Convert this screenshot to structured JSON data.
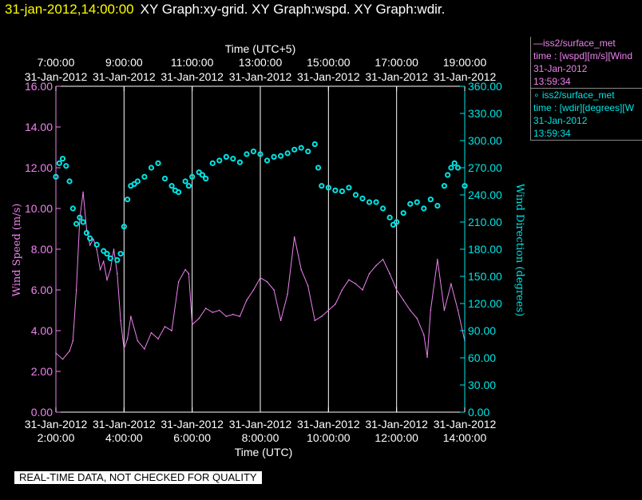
{
  "header": {
    "timestamp": "31-jan-2012,14:00:00",
    "titles": "XY Graph:xy-grid.  XY Graph:wspd.  XY Graph:wdir."
  },
  "legend": {
    "series1": {
      "line1": "—iss2/surface_met",
      "line2": "time : [wspd][m/s][Wind",
      "line3": "31-Jan-2012",
      "line4": "13:59:34"
    },
    "series2": {
      "line1": "∘ iss2/surface_met",
      "line2": "time : [wdir][degrees][W",
      "line3": "31-Jan-2012",
      "line4": "13:59:34"
    }
  },
  "qc_banner": "REAL-TIME DATA, NOT CHECKED FOR QUALITY",
  "colors": {
    "wspd": "#ee82ee",
    "wdir": "#00e5e5",
    "grid": "#ffffff",
    "background": "#000000",
    "header_timestamp": "#ffff00"
  },
  "chart_data": {
    "type": "line",
    "top_axis_title": "Time (UTC+5)",
    "xlabel": "Time (UTC)",
    "ylabel_left": "Wind Speed (m/s)",
    "ylabel_right": "Wind Direction (degrees)",
    "x_tick_dates": [
      "31-Jan-2012",
      "31-Jan-2012",
      "31-Jan-2012",
      "31-Jan-2012",
      "31-Jan-2012",
      "31-Jan-2012",
      "31-Jan-2012"
    ],
    "x_tick_times_bottom": [
      "2:00:00",
      "4:00:00",
      "6:00:00",
      "8:00:00",
      "10:00:00",
      "12:00:00",
      "14:00:00"
    ],
    "x_tick_times_top": [
      "7:00:00",
      "9:00:00",
      "11:00:00",
      "13:00:00",
      "15:00:00",
      "17:00:00",
      "19:00:00"
    ],
    "x_tick_hours_utc": [
      2,
      4,
      6,
      8,
      10,
      12,
      14
    ],
    "xlim_hours_utc": [
      2,
      14
    ],
    "ylim_left": [
      0,
      16
    ],
    "ylim_right": [
      0,
      360
    ],
    "y_ticks_left": [
      "0.00",
      "2.00",
      "4.00",
      "6.00",
      "8.00",
      "10.00",
      "12.00",
      "14.00",
      "16.00"
    ],
    "y_ticks_right": [
      "0.00",
      "30.00",
      "60.00",
      "90.00",
      "120.00",
      "150.00",
      "180.00",
      "210.00",
      "240.00",
      "270.00",
      "300.00",
      "330.00",
      "360.00"
    ],
    "grid": "vertical lines at each x tick",
    "series": [
      {
        "name": "iss2/surface_met wspd",
        "axis": "left",
        "style": "line",
        "x": [
          2.0,
          2.2,
          2.4,
          2.5,
          2.6,
          2.7,
          2.8,
          2.9,
          3.0,
          3.1,
          3.2,
          3.3,
          3.4,
          3.5,
          3.6,
          3.7,
          3.8,
          3.9,
          4.0,
          4.1,
          4.2,
          4.4,
          4.6,
          4.8,
          5.0,
          5.2,
          5.4,
          5.6,
          5.8,
          5.9,
          6.0,
          6.2,
          6.4,
          6.6,
          6.8,
          7.0,
          7.2,
          7.4,
          7.6,
          7.8,
          8.0,
          8.2,
          8.4,
          8.6,
          8.8,
          9.0,
          9.2,
          9.4,
          9.6,
          9.8,
          10.0,
          10.2,
          10.4,
          10.6,
          10.8,
          11.0,
          11.2,
          11.4,
          11.6,
          11.8,
          12.0,
          12.2,
          12.4,
          12.6,
          12.8,
          12.9,
          13.0,
          13.2,
          13.4,
          13.6,
          13.8,
          14.0
        ],
        "y": [
          2.9,
          2.6,
          3.0,
          3.5,
          6.0,
          9.5,
          10.8,
          9.0,
          8.2,
          8.5,
          8.0,
          7.0,
          7.4,
          6.5,
          7.0,
          8.0,
          6.8,
          4.5,
          3.1,
          3.6,
          4.7,
          3.5,
          3.1,
          3.9,
          3.6,
          4.2,
          4.0,
          6.4,
          7.0,
          6.8,
          4.3,
          4.6,
          5.1,
          4.9,
          5.0,
          4.7,
          4.8,
          4.7,
          5.5,
          6.0,
          6.6,
          6.4,
          6.0,
          4.5,
          5.8,
          8.6,
          7.0,
          6.2,
          4.5,
          4.7,
          5.0,
          5.3,
          6.0,
          6.5,
          6.3,
          6.0,
          6.8,
          7.2,
          7.5,
          6.8,
          6.0,
          5.5,
          5.0,
          4.6,
          3.8,
          2.7,
          5.0,
          7.5,
          5.0,
          6.3,
          5.0,
          3.5
        ]
      },
      {
        "name": "iss2/surface_met wdir",
        "axis": "right",
        "style": "markers",
        "x": [
          2.0,
          2.1,
          2.2,
          2.3,
          2.4,
          2.5,
          2.6,
          2.7,
          2.8,
          2.9,
          3.0,
          3.2,
          3.4,
          3.5,
          3.6,
          3.8,
          3.9,
          4.0,
          4.1,
          4.2,
          4.3,
          4.4,
          4.6,
          4.8,
          5.0,
          5.2,
          5.4,
          5.5,
          5.6,
          5.8,
          5.9,
          6.0,
          6.2,
          6.3,
          6.4,
          6.6,
          6.8,
          7.0,
          7.2,
          7.4,
          7.6,
          7.8,
          8.0,
          8.2,
          8.4,
          8.6,
          8.8,
          9.0,
          9.2,
          9.4,
          9.6,
          9.7,
          9.8,
          10.0,
          10.2,
          10.4,
          10.6,
          10.8,
          11.0,
          11.2,
          11.4,
          11.6,
          11.8,
          11.9,
          12.0,
          12.2,
          12.4,
          12.6,
          12.8,
          13.0,
          13.2,
          13.4,
          13.5,
          13.6,
          13.7,
          13.8,
          14.0
        ],
        "y": [
          260,
          275,
          280,
          272,
          255,
          225,
          208,
          215,
          210,
          198,
          192,
          185,
          178,
          175,
          170,
          168,
          175,
          205,
          235,
          250,
          252,
          255,
          260,
          270,
          275,
          258,
          250,
          245,
          243,
          255,
          250,
          260,
          265,
          262,
          258,
          275,
          278,
          282,
          280,
          276,
          285,
          288,
          285,
          278,
          282,
          283,
          286,
          290,
          292,
          288,
          296,
          270,
          250,
          248,
          245,
          244,
          248,
          240,
          236,
          232,
          232,
          225,
          215,
          207,
          210,
          220,
          230,
          232,
          225,
          235,
          228,
          250,
          262,
          270,
          275,
          270,
          250
        ]
      }
    ]
  }
}
